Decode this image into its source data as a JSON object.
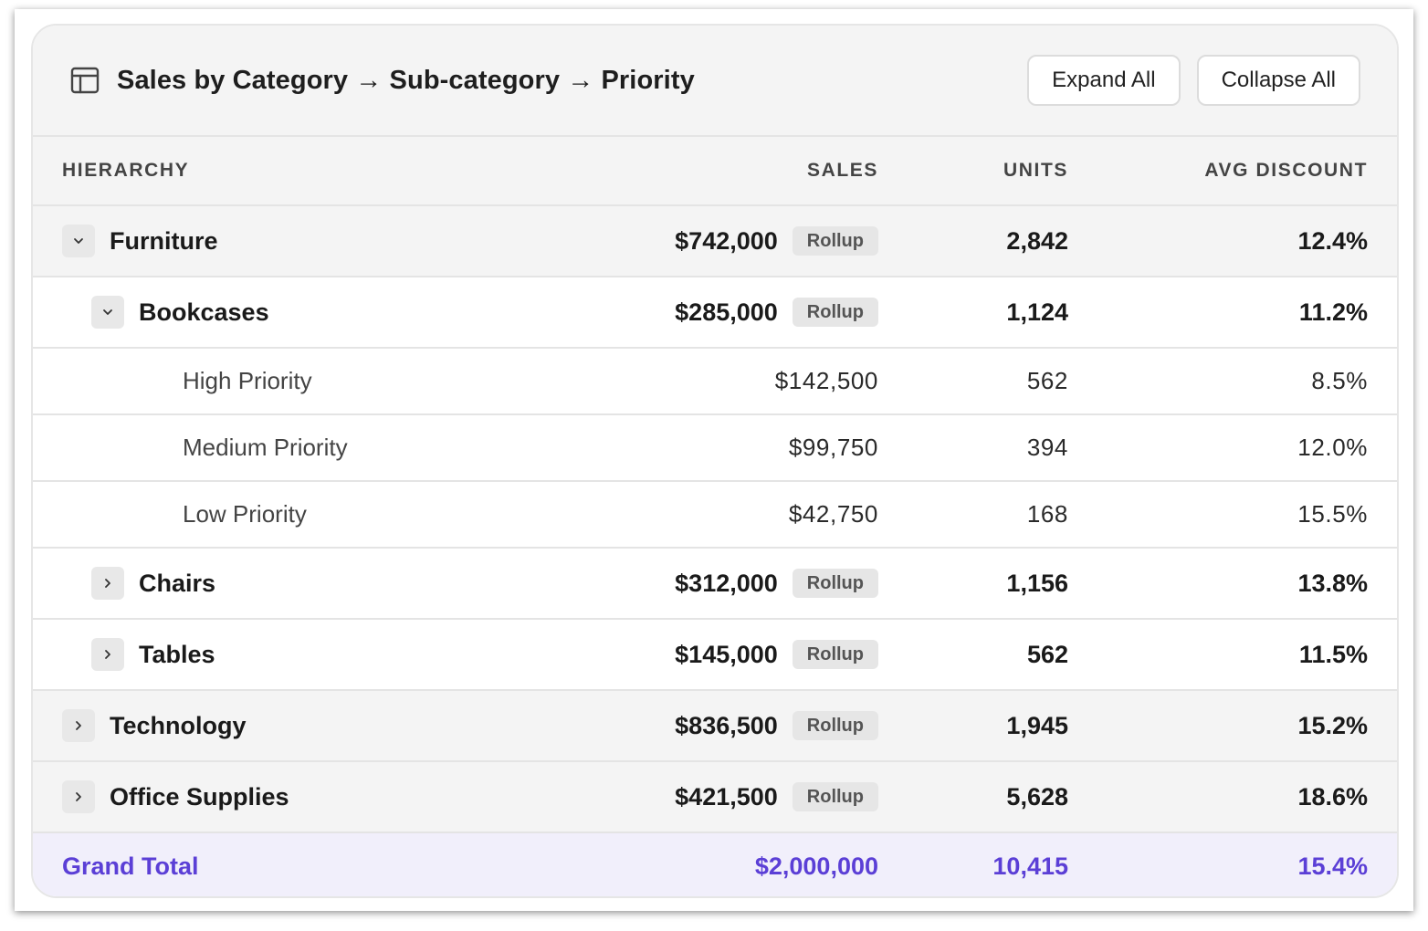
{
  "header": {
    "title": "Sales by Category → Sub-category → Priority",
    "expand_label": "Expand All",
    "collapse_label": "Collapse All"
  },
  "columns": {
    "hierarchy": "HIERARCHY",
    "sales": "SALES",
    "units": "UNITS",
    "discount": "AVG DISCOUNT"
  },
  "rollup_label": "Rollup",
  "rows": [
    {
      "level": "category",
      "expanded": true,
      "label": "Furniture",
      "sales": "$742,000",
      "units": "2,842",
      "discount": "12.4%"
    },
    {
      "level": "subcategory",
      "expanded": true,
      "label": "Bookcases",
      "sales": "$285,000",
      "units": "1,124",
      "discount": "11.2%"
    },
    {
      "level": "leaf",
      "label": "High Priority",
      "sales": "$142,500",
      "units": "562",
      "discount": "8.5%"
    },
    {
      "level": "leaf",
      "label": "Medium Priority",
      "sales": "$99,750",
      "units": "394",
      "discount": "12.0%"
    },
    {
      "level": "leaf",
      "label": "Low Priority",
      "sales": "$42,750",
      "units": "168",
      "discount": "15.5%"
    },
    {
      "level": "subcategory",
      "expanded": false,
      "label": "Chairs",
      "sales": "$312,000",
      "units": "1,156",
      "discount": "13.8%"
    },
    {
      "level": "subcategory",
      "expanded": false,
      "label": "Tables",
      "sales": "$145,000",
      "units": "562",
      "discount": "11.5%"
    },
    {
      "level": "category",
      "expanded": false,
      "label": "Technology",
      "sales": "$836,500",
      "units": "1,945",
      "discount": "15.2%"
    },
    {
      "level": "category",
      "expanded": false,
      "label": "Office Supplies",
      "sales": "$421,500",
      "units": "5,628",
      "discount": "18.6%"
    }
  ],
  "total": {
    "label": "Grand Total",
    "sales": "$2,000,000",
    "units": "10,415",
    "discount": "15.4%"
  },
  "colors": {
    "accent": "#5b3fd6",
    "total_bg": "#f1effb"
  },
  "icons": {
    "title": "table-layout-icon",
    "expanded": "chevron-down-icon",
    "collapsed": "chevron-right-icon"
  }
}
